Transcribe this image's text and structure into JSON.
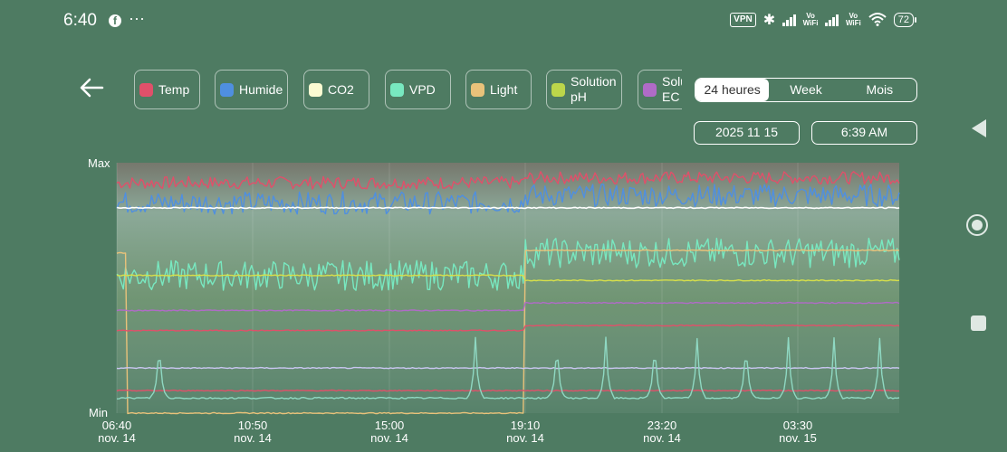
{
  "status_bar": {
    "time": "6:40",
    "app_icon": "facebook-icon",
    "more": "···",
    "vpn": "VPN",
    "vowifi": "Vo\nWiFi",
    "battery": "72"
  },
  "header": {
    "back_icon": "arrow-left-icon",
    "legend": [
      {
        "label": "Temp",
        "color": "#e0506a"
      },
      {
        "label": "Humide",
        "color": "#4f8fe0"
      },
      {
        "label": "CO2",
        "color": "#fbfbd2"
      },
      {
        "label": "VPD",
        "color": "#78e8c0"
      },
      {
        "label": "Light",
        "color": "#e9c27a"
      },
      {
        "label": "Solution pH",
        "color": "#bcd64a"
      },
      {
        "label": "Solution EC",
        "color": "#b06bc7"
      }
    ],
    "range": {
      "options": [
        "24 heures",
        "Week",
        "Mois"
      ],
      "selected": "24 heures"
    },
    "date": "2025 11 15",
    "time": "6:39 AM"
  },
  "chart_data": {
    "type": "line",
    "y_labels": {
      "top": "Max",
      "bottom": "Min"
    },
    "x_ticks": [
      {
        "time": "06:40",
        "date": "nov. 14"
      },
      {
        "time": "10:50",
        "date": "nov. 14"
      },
      {
        "time": "15:00",
        "date": "nov. 14"
      },
      {
        "time": "19:10",
        "date": "nov. 14"
      },
      {
        "time": "23:20",
        "date": "nov. 14"
      },
      {
        "time": "03:30",
        "date": "nov. 15"
      }
    ],
    "x_range_hours": [
      0,
      24
    ],
    "y_range": [
      0,
      1
    ],
    "series": [
      {
        "color": "#e0506a",
        "baseline": [
          0.92,
          0.94
        ],
        "noise": 0.025,
        "step_at_hours": 12.5
      },
      {
        "color": "#4f8fe0",
        "baseline": [
          0.84,
          0.87
        ],
        "noise": 0.045,
        "step_at_hours": 12.5
      },
      {
        "color": "#78e8c0",
        "baseline": [
          0.55,
          0.64
        ],
        "noise": 0.06,
        "step_at_hours": 12.5
      },
      {
        "color": "#e9c27a",
        "levels": [
          0.64,
          0.0,
          0.65
        ],
        "steps_hours": [
          0.3,
          12.5
        ]
      },
      {
        "color": "#d8e04a",
        "levels": [
          0.55,
          0.53
        ],
        "steps_hours": [
          12.5
        ]
      },
      {
        "color": "#b06bc7",
        "levels": [
          0.41,
          0.44
        ],
        "steps_hours": [
          12.5
        ]
      },
      {
        "color": "#e0506a",
        "levels": [
          0.33,
          0.35
        ],
        "steps_hours": [
          12.5
        ]
      },
      {
        "color": "#c9c6f0",
        "levels": [
          0.18
        ],
        "steps_hours": []
      },
      {
        "color": "#e0506a",
        "levels": [
          0.09
        ],
        "steps_hours": []
      },
      {
        "color": "#8fd8c2",
        "levels": [
          0.06
        ],
        "spikes_hours": [
          1.3,
          11.0,
          13.5,
          15.0,
          16.5,
          17.8,
          19.3,
          20.6,
          22.0,
          23.4
        ]
      },
      {
        "color": "#ffffff",
        "levels": [
          0.82
        ],
        "steps_hours": []
      }
    ]
  }
}
